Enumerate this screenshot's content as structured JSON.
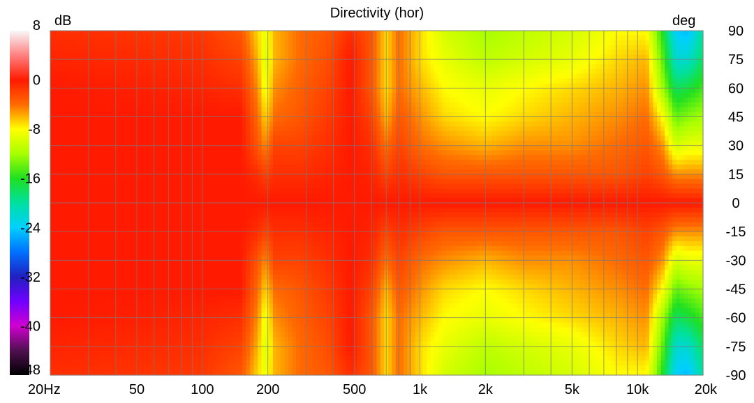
{
  "chart_data": {
    "type": "heatmap",
    "title": "Directivity (hor)",
    "colorbar": {
      "unit": "dB",
      "range": [
        -48,
        8
      ],
      "tick_labels": [
        "8",
        "0",
        "-8",
        "-16",
        "-24",
        "-32",
        "-40",
        "-48"
      ],
      "tick_values": [
        8,
        0,
        -8,
        -16,
        -24,
        -32,
        -40,
        -48
      ],
      "colors": [
        {
          "v": 8,
          "c": "#f8f8f8"
        },
        {
          "v": 4,
          "c": "#ff8080"
        },
        {
          "v": 0,
          "c": "#ff1a00"
        },
        {
          "v": -4,
          "c": "#ff6a00"
        },
        {
          "v": -8,
          "c": "#ffff00"
        },
        {
          "v": -12,
          "c": "#a8ff00"
        },
        {
          "v": -16,
          "c": "#20e020"
        },
        {
          "v": -20,
          "c": "#00e0a0"
        },
        {
          "v": -24,
          "c": "#00d0ff"
        },
        {
          "v": -28,
          "c": "#0070ff"
        },
        {
          "v": -32,
          "c": "#2020c0"
        },
        {
          "v": -36,
          "c": "#7000ff"
        },
        {
          "v": -40,
          "c": "#d000d0"
        },
        {
          "v": -44,
          "c": "#501050"
        },
        {
          "v": -48,
          "c": "#000000"
        }
      ]
    },
    "x_axis": {
      "scale": "log",
      "range": [
        20,
        20000
      ],
      "tick_labels": [
        "20Hz",
        "50",
        "100",
        "200",
        "500",
        "1k",
        "2k",
        "5k",
        "10k",
        "20k"
      ],
      "tick_values": [
        20,
        50,
        100,
        200,
        500,
        1000,
        2000,
        5000,
        10000,
        20000
      ]
    },
    "y_axis": {
      "unit": "deg",
      "range": [
        -90,
        90
      ],
      "tick_labels": [
        "90",
        "75",
        "60",
        "45",
        "30",
        "15",
        "0",
        "-15",
        "-30",
        "-45",
        "-60",
        "-75",
        "-90"
      ],
      "tick_values": [
        90,
        75,
        60,
        45,
        30,
        15,
        0,
        -15,
        -30,
        -45,
        -60,
        -75,
        -90
      ]
    },
    "grid": true,
    "freqs": [
      20,
      100,
      150,
      180,
      195,
      215,
      280,
      380,
      480,
      600,
      700,
      800,
      1000,
      1300,
      2000,
      3000,
      5000,
      8000,
      11000,
      13000,
      15000,
      17000,
      20000
    ],
    "angles": [
      0,
      15,
      30,
      45,
      60,
      75,
      90
    ],
    "values_db": [
      [
        0,
        0,
        0,
        0,
        0,
        -0.5,
        -1
      ],
      [
        0,
        0,
        0,
        0,
        -0.5,
        -1,
        -1.5
      ],
      [
        0,
        0,
        0,
        0,
        -1,
        -2,
        -3
      ],
      [
        0,
        -1,
        -3,
        -4,
        -5,
        -6,
        -7
      ],
      [
        0,
        -2,
        -5,
        -7,
        -9,
        -10,
        -9
      ],
      [
        0,
        -1,
        -2,
        -4,
        -5,
        -6,
        -6
      ],
      [
        0,
        -1,
        -2,
        -3,
        -3.5,
        -4,
        -4
      ],
      [
        0,
        -0.5,
        -1,
        -1.5,
        -2,
        -2.5,
        -3
      ],
      [
        0,
        0,
        0,
        0,
        0,
        0,
        -1
      ],
      [
        0,
        -0.5,
        -1,
        -2,
        -3,
        -3,
        -3
      ],
      [
        0,
        -2,
        -4,
        -6,
        -7,
        -7,
        -7
      ],
      [
        0,
        -1,
        -2,
        -3,
        -4,
        -4,
        -4
      ],
      [
        0,
        -2,
        -4,
        -5,
        -6,
        -7,
        -7
      ],
      [
        0,
        -3,
        -5,
        -7,
        -8,
        -9,
        -10
      ],
      [
        0,
        -3,
        -6,
        -8,
        -9,
        -11,
        -12
      ],
      [
        0,
        -3,
        -5,
        -7,
        -8,
        -10,
        -11
      ],
      [
        0,
        -3,
        -5,
        -6,
        -7,
        -9,
        -10
      ],
      [
        0,
        -3,
        -4,
        -5,
        -6,
        -7,
        -8
      ],
      [
        0,
        -2,
        -3,
        -4,
        -5,
        -6,
        -8
      ],
      [
        0,
        -3,
        -5,
        -8,
        -12,
        -14,
        -16
      ],
      [
        0,
        -5,
        -10,
        -14,
        -18,
        -22,
        -24
      ],
      [
        0,
        -5,
        -9,
        -13,
        -17,
        -22,
        -25
      ],
      [
        0,
        -5,
        -9,
        -12,
        -15,
        -18,
        -20
      ]
    ]
  }
}
